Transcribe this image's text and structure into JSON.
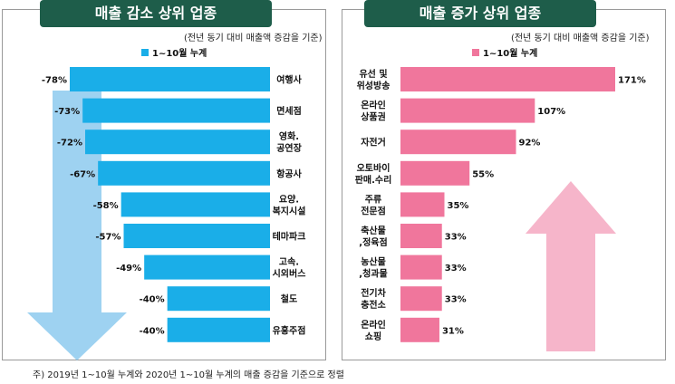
{
  "panels": [
    {
      "title": "매출 감소 상위 업종",
      "note": "(전년 동기 대비 매출액 증감을 기준)",
      "legend": "1~10월 누계",
      "color": "#1aaee8",
      "arrow_color": "#7ec3ec"
    },
    {
      "title": "매출 증가 상위 업종",
      "note": "(전년 동기 대비 매출액 증감을 기준)",
      "legend": "1~10월 누계",
      "color": "#f0769c",
      "arrow_color": "#f4a3bd"
    }
  ],
  "chart_data": [
    {
      "type": "bar",
      "orientation": "horizontal",
      "title": "매출 감소 상위 업종",
      "series": [
        {
          "name": "1~10월 누계",
          "values": [
            -78,
            -73,
            -72,
            -67,
            -58,
            -57,
            -49,
            -40,
            -40
          ]
        }
      ],
      "categories": [
        "여행사",
        "면세점",
        "영화.\n공연장",
        "항공사",
        "요양.\n복지시설",
        "테마파크",
        "고속.\n시외버스",
        "철도",
        "유흥주점"
      ],
      "value_labels": [
        "-78%",
        "-73%",
        "-72%",
        "-67%",
        "-58%",
        "-57%",
        "-49%",
        "-40%",
        "-40%"
      ]
    },
    {
      "type": "bar",
      "orientation": "horizontal",
      "title": "매출 증가 상위 업종",
      "series": [
        {
          "name": "1~10월 누계",
          "values": [
            171,
            107,
            92,
            55,
            35,
            33,
            33,
            33,
            31
          ]
        }
      ],
      "categories": [
        "유선 및\n위성방송",
        "온라인\n상품권",
        "자전거",
        "오토바이\n판매.수리",
        "주류\n전문점",
        "축산물\n,정육점",
        "농산물\n,청과물",
        "전기차\n충전소",
        "온라인\n쇼핑"
      ],
      "value_labels": [
        "171%",
        "107%",
        "92%",
        "55%",
        "35%",
        "33%",
        "33%",
        "33%",
        "31%"
      ]
    }
  ],
  "footnote": "주) 2019년 1~10월 누계와 2020년 1~10월 누계의 매출 증감을 기준으로 정렬"
}
